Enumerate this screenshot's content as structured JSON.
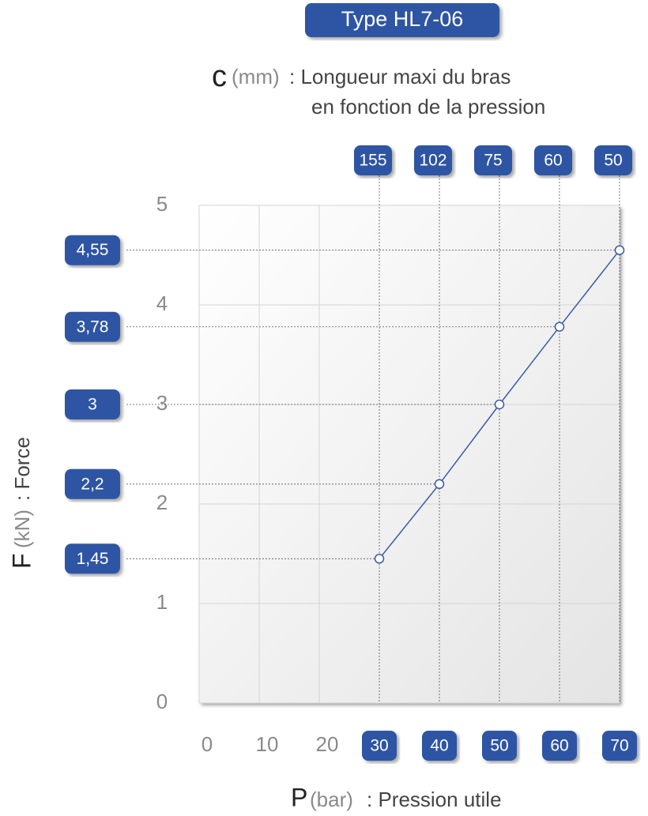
{
  "chart_data": {
    "type": "line",
    "title": "Type HL7-06",
    "top_label": {
      "symbol": "c",
      "unit": "(mm)",
      "lines": [
        ": Longueur maxi du bras",
        "en fonction de la pression"
      ]
    },
    "x_label": {
      "symbol": "P",
      "unit": "(bar)",
      "text": ": Pression utile"
    },
    "y_label": {
      "symbol": "F",
      "unit": "(kN)",
      "text": ": Force"
    },
    "x": [
      30,
      40,
      50,
      60,
      70
    ],
    "c_values": [
      155,
      102,
      75,
      60,
      50
    ],
    "series": [
      {
        "color": "#3a5ba8",
        "values": [
          1.45,
          2.2,
          3,
          3.78,
          4.55
        ],
        "value_labels": [
          "1,45",
          "2,2",
          "3",
          "3,78",
          "4,55"
        ]
      }
    ],
    "xlim": [
      0,
      70
    ],
    "xticks": [
      0,
      10,
      20,
      30,
      40,
      50,
      60,
      70
    ],
    "ylim": [
      0,
      5
    ],
    "yticks": [
      0,
      1,
      2,
      3,
      4,
      5
    ],
    "grid": true,
    "box_color": "#2f55a4"
  }
}
